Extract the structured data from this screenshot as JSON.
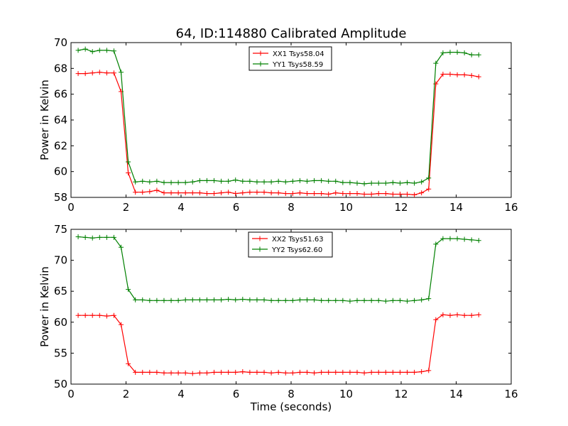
{
  "figure": {
    "title": "64, ID:114880 Calibrated Amplitude",
    "xlabel": "Time (seconds)"
  },
  "chart_data": [
    {
      "type": "line",
      "title": "64, ID:114880 Calibrated Amplitude",
      "xlabel": "",
      "ylabel": "Power in Kelvin",
      "xlim": [
        0,
        16
      ],
      "ylim": [
        58,
        70
      ],
      "xticks": [
        0,
        2,
        4,
        6,
        8,
        10,
        12,
        14,
        16
      ],
      "yticks": [
        58,
        60,
        62,
        64,
        66,
        68,
        70
      ],
      "legend_position": "top-center",
      "x": [
        0.26,
        0.52,
        0.78,
        1.04,
        1.3,
        1.56,
        1.82,
        2.08,
        2.34,
        2.6,
        2.86,
        3.12,
        3.38,
        3.64,
        3.9,
        4.16,
        4.42,
        4.68,
        4.94,
        5.2,
        5.46,
        5.72,
        5.98,
        6.24,
        6.5,
        6.76,
        7.02,
        7.28,
        7.54,
        7.8,
        8.06,
        8.32,
        8.58,
        8.84,
        9.1,
        9.36,
        9.62,
        9.88,
        10.14,
        10.4,
        10.66,
        10.92,
        11.18,
        11.44,
        11.7,
        11.96,
        12.22,
        12.48,
        12.74,
        13.0,
        13.26,
        13.52,
        13.78,
        14.04,
        14.3,
        14.56,
        14.82
      ],
      "series": [
        {
          "name": "XX1 Tsys58.04",
          "color": "#ff0000",
          "values": [
            67.6,
            67.6,
            67.65,
            67.7,
            67.65,
            67.65,
            66.2,
            59.9,
            58.4,
            58.4,
            58.45,
            58.55,
            58.35,
            58.35,
            58.35,
            58.35,
            58.35,
            58.35,
            58.3,
            58.3,
            58.35,
            58.4,
            58.3,
            58.35,
            58.4,
            58.4,
            58.4,
            58.35,
            58.35,
            58.3,
            58.3,
            58.35,
            58.3,
            58.3,
            58.3,
            58.25,
            58.35,
            58.3,
            58.3,
            58.3,
            58.25,
            58.25,
            58.3,
            58.3,
            58.25,
            58.25,
            58.25,
            58.2,
            58.35,
            58.65,
            66.8,
            67.55,
            67.55,
            67.5,
            67.5,
            67.45,
            67.35
          ]
        },
        {
          "name": "YY1 Tsys58.59",
          "color": "#008000",
          "values": [
            69.4,
            69.5,
            69.3,
            69.4,
            69.4,
            69.35,
            67.7,
            60.75,
            59.2,
            59.25,
            59.2,
            59.25,
            59.15,
            59.15,
            59.15,
            59.15,
            59.2,
            59.3,
            59.3,
            59.3,
            59.25,
            59.25,
            59.35,
            59.25,
            59.25,
            59.2,
            59.2,
            59.2,
            59.25,
            59.2,
            59.25,
            59.3,
            59.25,
            59.3,
            59.3,
            59.25,
            59.25,
            59.15,
            59.15,
            59.1,
            59.05,
            59.1,
            59.1,
            59.1,
            59.15,
            59.1,
            59.15,
            59.1,
            59.2,
            59.5,
            68.4,
            69.2,
            69.25,
            69.25,
            69.2,
            69.05,
            69.05
          ]
        }
      ]
    },
    {
      "type": "line",
      "title": "",
      "xlabel": "Time (seconds)",
      "ylabel": "Power in Kelvin",
      "xlim": [
        0,
        16
      ],
      "ylim": [
        50,
        75
      ],
      "xticks": [
        0,
        2,
        4,
        6,
        8,
        10,
        12,
        14,
        16
      ],
      "yticks": [
        50,
        55,
        60,
        65,
        70,
        75
      ],
      "legend_position": "top-center",
      "x": [
        0.26,
        0.52,
        0.78,
        1.04,
        1.3,
        1.56,
        1.82,
        2.08,
        2.34,
        2.6,
        2.86,
        3.12,
        3.38,
        3.64,
        3.9,
        4.16,
        4.42,
        4.68,
        4.94,
        5.2,
        5.46,
        5.72,
        5.98,
        6.24,
        6.5,
        6.76,
        7.02,
        7.28,
        7.54,
        7.8,
        8.06,
        8.32,
        8.58,
        8.84,
        9.1,
        9.36,
        9.62,
        9.88,
        10.14,
        10.4,
        10.66,
        10.92,
        11.18,
        11.44,
        11.7,
        11.96,
        12.22,
        12.48,
        12.74,
        13.0,
        13.26,
        13.52,
        13.78,
        14.04,
        14.3,
        14.56,
        14.82
      ],
      "series": [
        {
          "name": "XX2 Tsys51.63",
          "color": "#ff0000",
          "values": [
            61.1,
            61.1,
            61.1,
            61.1,
            61.0,
            61.1,
            59.6,
            53.3,
            51.9,
            51.9,
            51.9,
            51.9,
            51.8,
            51.8,
            51.8,
            51.8,
            51.7,
            51.8,
            51.8,
            51.9,
            51.9,
            51.9,
            51.9,
            52.0,
            51.9,
            51.9,
            51.9,
            51.8,
            51.9,
            51.8,
            51.8,
            51.9,
            51.9,
            51.8,
            51.9,
            51.9,
            51.9,
            51.9,
            51.9,
            51.9,
            51.8,
            51.9,
            51.9,
            51.9,
            51.9,
            51.9,
            51.9,
            51.9,
            52.0,
            52.2,
            60.4,
            61.2,
            61.1,
            61.2,
            61.1,
            61.1,
            61.2
          ]
        },
        {
          "name": "YY2 Tsys62.60",
          "color": "#008000",
          "values": [
            73.8,
            73.7,
            73.6,
            73.7,
            73.7,
            73.7,
            72.1,
            65.3,
            63.6,
            63.6,
            63.5,
            63.5,
            63.5,
            63.5,
            63.5,
            63.6,
            63.6,
            63.6,
            63.6,
            63.6,
            63.6,
            63.7,
            63.6,
            63.7,
            63.6,
            63.6,
            63.6,
            63.5,
            63.5,
            63.5,
            63.5,
            63.6,
            63.6,
            63.6,
            63.5,
            63.5,
            63.5,
            63.5,
            63.4,
            63.5,
            63.5,
            63.5,
            63.5,
            63.4,
            63.5,
            63.5,
            63.4,
            63.5,
            63.6,
            63.8,
            72.6,
            73.5,
            73.5,
            73.5,
            73.4,
            73.3,
            73.2
          ]
        }
      ]
    }
  ]
}
